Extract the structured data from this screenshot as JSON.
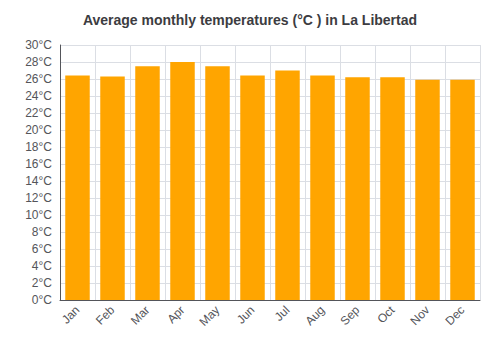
{
  "chart_data": {
    "type": "bar",
    "title": "Average monthly temperatures (°C ) in La Libertad",
    "categories": [
      "Jan",
      "Feb",
      "Mar",
      "Apr",
      "May",
      "Jun",
      "Jul",
      "Aug",
      "Sep",
      "Oct",
      "Nov",
      "Dec"
    ],
    "values": [
      26.4,
      26.3,
      27.5,
      28.0,
      27.5,
      26.4,
      27.0,
      26.4,
      26.2,
      26.2,
      25.9,
      25.9
    ],
    "color": "#FFA500",
    "ylim": [
      0,
      30
    ],
    "yticks": [
      {
        "value": 0,
        "label": "0°C"
      },
      {
        "value": 2,
        "label": "2°C"
      },
      {
        "value": 4,
        "label": "4°C"
      },
      {
        "value": 6,
        "label": "6°C"
      },
      {
        "value": 8,
        "label": "8°C"
      },
      {
        "value": 10,
        "label": "10°C"
      },
      {
        "value": 12,
        "label": "12°C"
      },
      {
        "value": 14,
        "label": "14°C"
      },
      {
        "value": 16,
        "label": "16°C"
      },
      {
        "value": 18,
        "label": "18°C"
      },
      {
        "value": 20,
        "label": "20°C"
      },
      {
        "value": 22,
        "label": "22°C"
      },
      {
        "value": 24,
        "label": "24°C"
      },
      {
        "value": 26,
        "label": "26°C"
      },
      {
        "value": 28,
        "label": "28°C"
      },
      {
        "value": 30,
        "label": "30°C"
      }
    ],
    "grid": true
  }
}
